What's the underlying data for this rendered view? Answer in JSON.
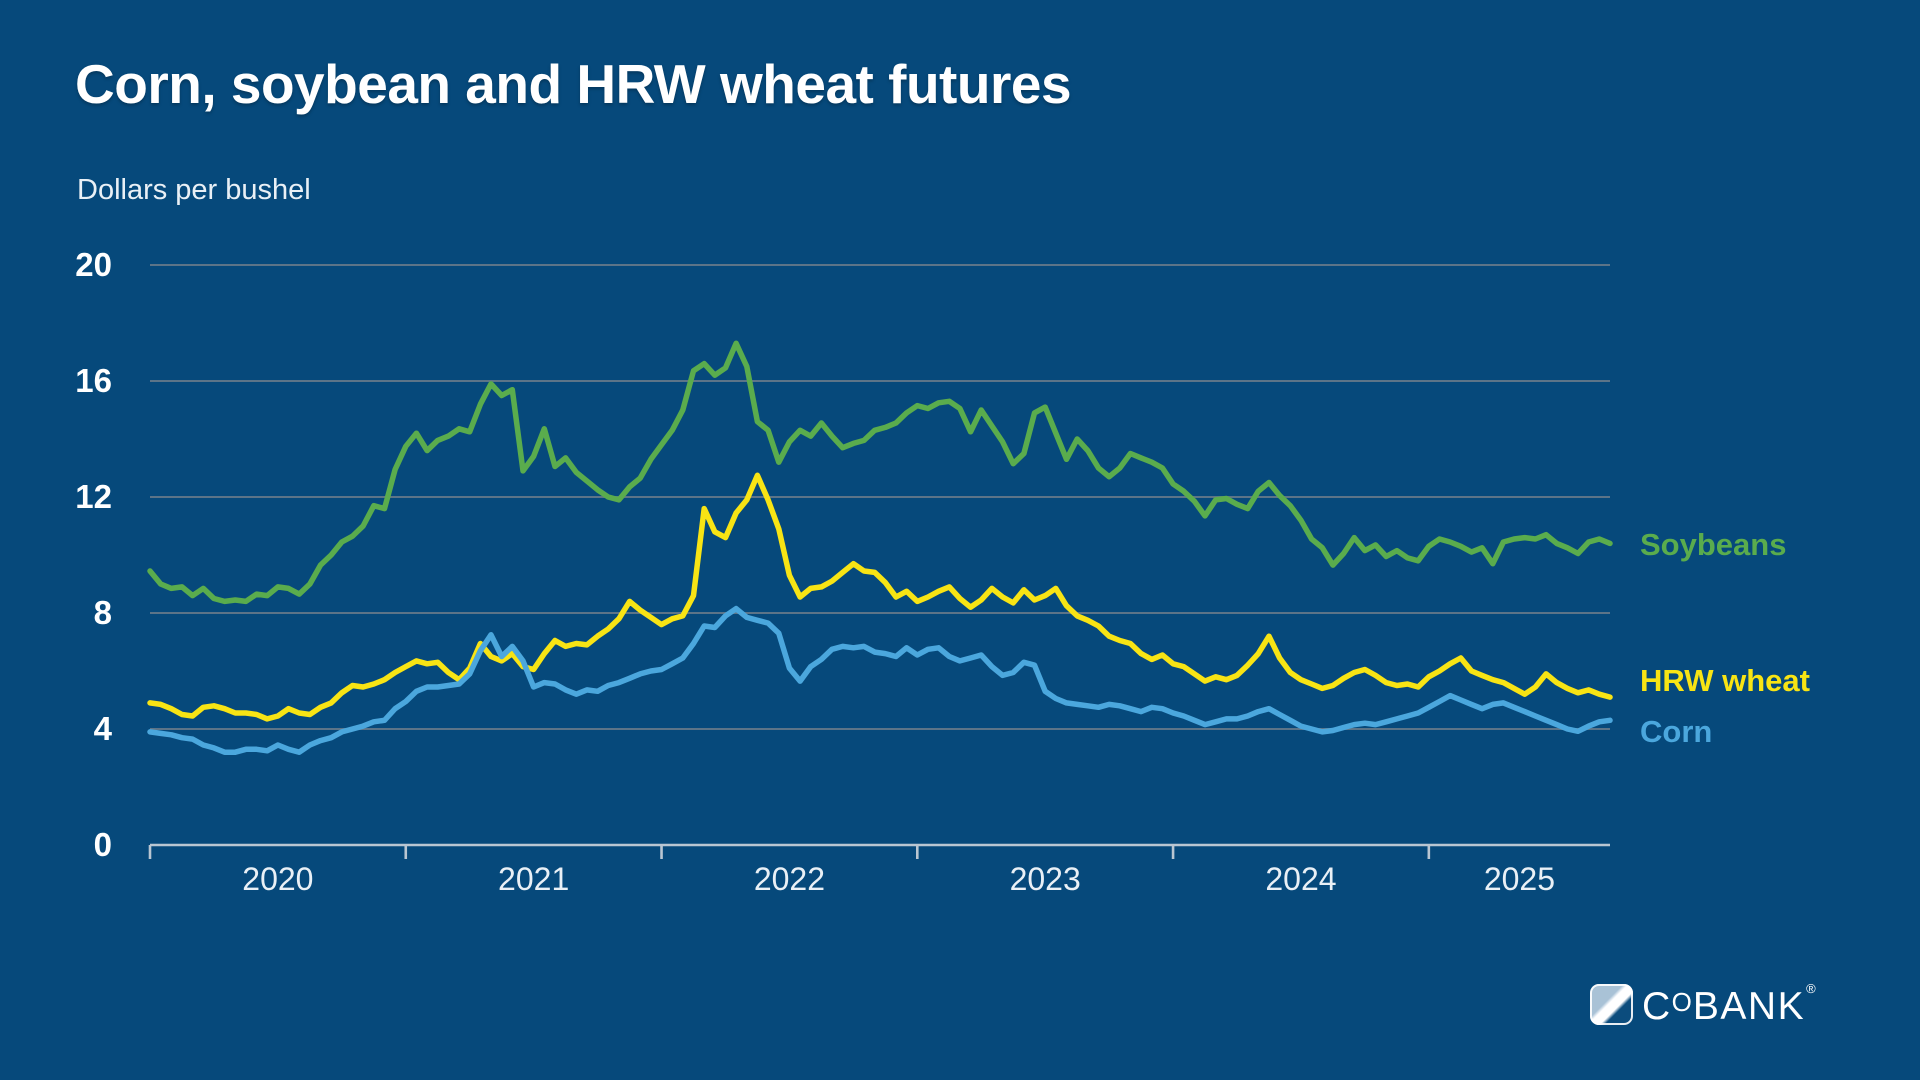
{
  "title": "Corn, soybean and HRW wheat futures",
  "subtitle": "Dollars per bushel",
  "logo": {
    "text": "CoBANK",
    "registered": "®"
  },
  "colors": {
    "background": "#06497B",
    "title_text": "#FFFFFF",
    "subtitle_text": "#E9F0F6",
    "gridline": "#5C7488",
    "axis_line": "#B9C6D2",
    "tick_label": "#E9F0F6",
    "soybeans": "#5AAC4D",
    "hrw_wheat": "#F8E414",
    "corn": "#4BA7DD"
  },
  "chart_data": {
    "type": "line",
    "title": "Corn, soybean and HRW wheat futures",
    "ylabel": "Dollars per bushel",
    "xlabel": "",
    "ylim": [
      0,
      20
    ],
    "y_ticks": [
      0,
      4,
      8,
      12,
      16,
      20
    ],
    "x_tick_labels": [
      "2020",
      "2021",
      "2022",
      "2023",
      "2024",
      "2025"
    ],
    "x_start": "2020-01",
    "x_end": "2025-09",
    "points_per_month": 2,
    "grid": "horizontal-only",
    "legend_position": "right-of-line-ends",
    "series": [
      {
        "name": "Soybeans",
        "color": "#5AAC4D",
        "values": [
          9.45,
          9.0,
          8.85,
          8.9,
          8.6,
          8.85,
          8.5,
          8.4,
          8.45,
          8.4,
          8.65,
          8.6,
          8.9,
          8.85,
          8.65,
          9.0,
          9.65,
          10.0,
          10.45,
          10.65,
          11.0,
          11.7,
          11.6,
          12.95,
          13.75,
          14.2,
          13.6,
          13.95,
          14.1,
          14.35,
          14.25,
          15.2,
          15.9,
          15.5,
          15.7,
          12.9,
          13.4,
          14.35,
          13.05,
          13.35,
          12.85,
          12.55,
          12.25,
          12.0,
          11.9,
          12.35,
          12.65,
          13.3,
          13.8,
          14.3,
          15.0,
          16.35,
          16.6,
          16.2,
          16.45,
          17.3,
          16.5,
          14.6,
          14.3,
          13.2,
          13.9,
          14.3,
          14.1,
          14.55,
          14.1,
          13.7,
          13.85,
          13.95,
          14.3,
          14.4,
          14.55,
          14.9,
          15.15,
          15.05,
          15.25,
          15.3,
          15.05,
          14.25,
          15.0,
          14.45,
          13.9,
          13.15,
          13.5,
          14.9,
          15.1,
          14.2,
          13.3,
          14.0,
          13.6,
          13.0,
          12.7,
          13.0,
          13.5,
          13.35,
          13.2,
          13.0,
          12.45,
          12.2,
          11.85,
          11.35,
          11.9,
          11.95,
          11.75,
          11.6,
          12.2,
          12.5,
          12.05,
          11.7,
          11.2,
          10.55,
          10.25,
          9.65,
          10.05,
          10.6,
          10.15,
          10.35,
          9.95,
          10.15,
          9.9,
          9.8,
          10.3,
          10.55,
          10.45,
          10.3,
          10.1,
          10.25,
          9.7,
          10.45,
          10.55,
          10.6,
          10.55,
          10.7,
          10.4,
          10.25,
          10.05,
          10.45,
          10.55,
          10.4
        ]
      },
      {
        "name": "HRW wheat",
        "color": "#F8E414",
        "values": [
          4.9,
          4.85,
          4.7,
          4.5,
          4.45,
          4.75,
          4.8,
          4.7,
          4.55,
          4.55,
          4.5,
          4.35,
          4.45,
          4.7,
          4.55,
          4.5,
          4.75,
          4.9,
          5.25,
          5.5,
          5.45,
          5.55,
          5.7,
          5.95,
          6.15,
          6.35,
          6.25,
          6.3,
          5.95,
          5.7,
          6.1,
          6.95,
          6.5,
          6.35,
          6.6,
          6.15,
          6.05,
          6.6,
          7.05,
          6.85,
          6.95,
          6.9,
          7.2,
          7.45,
          7.8,
          8.4,
          8.1,
          7.85,
          7.6,
          7.8,
          7.9,
          8.6,
          11.6,
          10.8,
          10.6,
          11.45,
          11.9,
          12.75,
          11.9,
          10.9,
          9.3,
          8.55,
          8.85,
          8.9,
          9.1,
          9.4,
          9.7,
          9.45,
          9.4,
          9.05,
          8.55,
          8.75,
          8.4,
          8.55,
          8.75,
          8.9,
          8.5,
          8.2,
          8.45,
          8.85,
          8.55,
          8.35,
          8.8,
          8.45,
          8.6,
          8.85,
          8.25,
          7.9,
          7.75,
          7.55,
          7.2,
          7.05,
          6.95,
          6.6,
          6.4,
          6.55,
          6.25,
          6.15,
          5.9,
          5.65,
          5.8,
          5.7,
          5.85,
          6.2,
          6.6,
          7.2,
          6.45,
          5.95,
          5.7,
          5.55,
          5.4,
          5.5,
          5.75,
          5.95,
          6.05,
          5.85,
          5.6,
          5.5,
          5.55,
          5.45,
          5.8,
          6.0,
          6.25,
          6.45,
          6.0,
          5.85,
          5.7,
          5.6,
          5.4,
          5.2,
          5.45,
          5.9,
          5.6,
          5.4,
          5.25,
          5.35,
          5.2,
          5.1
        ]
      },
      {
        "name": "Corn",
        "color": "#4BA7DD",
        "values": [
          3.9,
          3.85,
          3.8,
          3.7,
          3.65,
          3.45,
          3.35,
          3.2,
          3.2,
          3.3,
          3.3,
          3.25,
          3.45,
          3.3,
          3.2,
          3.45,
          3.6,
          3.7,
          3.9,
          4.0,
          4.1,
          4.25,
          4.3,
          4.7,
          4.95,
          5.3,
          5.45,
          5.45,
          5.5,
          5.55,
          5.9,
          6.7,
          7.25,
          6.5,
          6.85,
          6.35,
          5.45,
          5.6,
          5.55,
          5.35,
          5.2,
          5.35,
          5.3,
          5.5,
          5.6,
          5.75,
          5.9,
          6.0,
          6.05,
          6.25,
          6.45,
          6.95,
          7.55,
          7.5,
          7.9,
          8.15,
          7.85,
          7.75,
          7.65,
          7.3,
          6.1,
          5.65,
          6.15,
          6.4,
          6.75,
          6.85,
          6.8,
          6.85,
          6.65,
          6.6,
          6.5,
          6.8,
          6.55,
          6.75,
          6.8,
          6.5,
          6.35,
          6.45,
          6.55,
          6.15,
          5.85,
          5.95,
          6.3,
          6.2,
          5.3,
          5.05,
          4.9,
          4.85,
          4.8,
          4.75,
          4.85,
          4.8,
          4.7,
          4.6,
          4.75,
          4.7,
          4.55,
          4.45,
          4.3,
          4.15,
          4.25,
          4.35,
          4.35,
          4.45,
          4.6,
          4.7,
          4.5,
          4.3,
          4.1,
          4.0,
          3.9,
          3.95,
          4.05,
          4.15,
          4.2,
          4.15,
          4.25,
          4.35,
          4.45,
          4.55,
          4.75,
          4.95,
          5.15,
          5.0,
          4.85,
          4.7,
          4.85,
          4.9,
          4.75,
          4.6,
          4.45,
          4.3,
          4.15,
          4.0,
          3.92,
          4.1,
          4.25,
          4.3
        ]
      }
    ]
  }
}
